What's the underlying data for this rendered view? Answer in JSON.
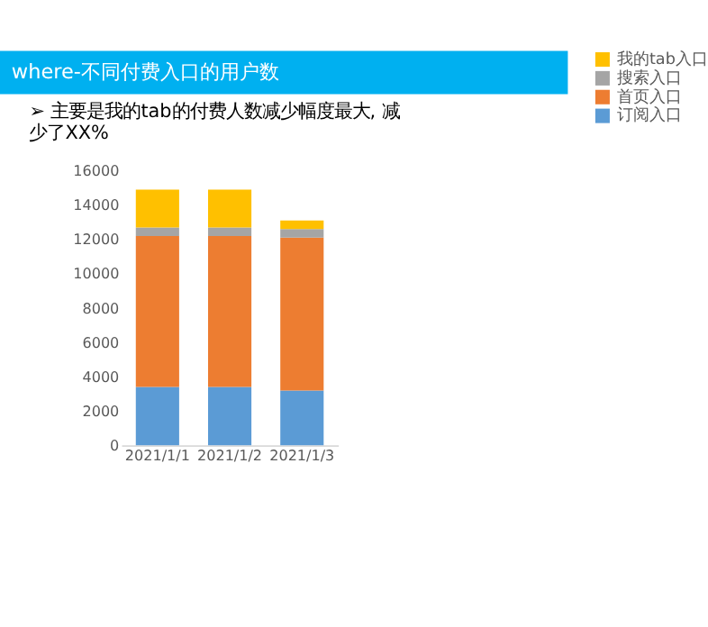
{
  "chart_data": {
    "type": "bar",
    "stacked": true,
    "title": "where-不同付费入口的用户数",
    "annotations": [
      "➢ 主要是我的tab的付费人数减少幅度最大, 减少了XX%"
    ],
    "categories": [
      "2021/1/1",
      "2021/1/2",
      "2021/1/3"
    ],
    "series": [
      {
        "name": "订阅入口",
        "color": "#5b9bd5",
        "values": [
          3400,
          3400,
          3200
        ]
      },
      {
        "name": "首页入口",
        "color": "#ed7d31",
        "values": [
          8800,
          8800,
          8900
        ]
      },
      {
        "name": "搜索入口",
        "color": "#a5a5a5",
        "values": [
          500,
          500,
          500
        ]
      },
      {
        "name": "我的tab入口",
        "color": "#ffc000",
        "values": [
          2200,
          2200,
          500
        ]
      }
    ],
    "ylim": [
      0,
      16000
    ],
    "yticks": [
      0,
      2000,
      4000,
      6000,
      8000,
      10000,
      12000,
      14000,
      16000
    ],
    "grid": false,
    "legend": "right"
  }
}
